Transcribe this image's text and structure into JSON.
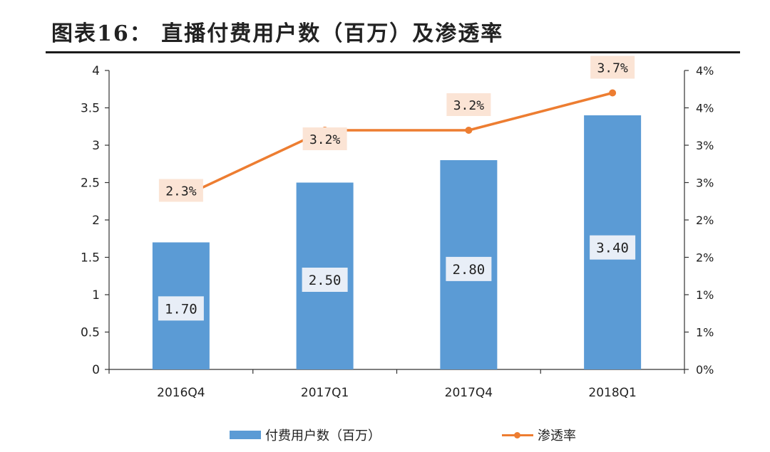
{
  "title": "图表16： 直播付费用户数（百万）及渗透率",
  "colors": {
    "bar": "#5b9bd5",
    "line": "#ed7d31",
    "label_bg_bar": "#e8eef7",
    "label_bg_line": "#fbe4d5"
  },
  "chart_data": {
    "type": "bar+line",
    "categories": [
      "2016Q4",
      "2017Q1",
      "2017Q4",
      "2018Q1"
    ],
    "series": [
      {
        "name": "付费用户数（百万）",
        "type": "bar",
        "axis": "left",
        "values": [
          1.7,
          2.5,
          2.8,
          3.4
        ],
        "data_labels": [
          "1.70",
          "2.50",
          "2.80",
          "3.40"
        ]
      },
      {
        "name": "渗透率",
        "type": "line",
        "axis": "right",
        "values": [
          2.3,
          3.2,
          3.2,
          3.7
        ],
        "data_labels": [
          "2.3%",
          "3.2%",
          "3.2%",
          "3.7%"
        ]
      }
    ],
    "y_left": {
      "ylim": [
        0,
        4
      ],
      "ticks": [
        0,
        0.5,
        1,
        1.5,
        2,
        2.5,
        3,
        3.5,
        4
      ],
      "tick_labels": [
        "0",
        "0.5",
        "1",
        "1.5",
        "2",
        "2.5",
        "3",
        "3.5",
        "4"
      ]
    },
    "y_right": {
      "ylim": [
        0,
        4
      ],
      "ticks": [
        0,
        0.5,
        1,
        1.5,
        2,
        2.5,
        3,
        3.5,
        4
      ],
      "tick_labels": [
        "0%",
        "1%",
        "1%",
        "2%",
        "2%",
        "3%",
        "3%",
        "4%",
        "4%"
      ]
    },
    "grid": false,
    "legend_position": "bottom"
  },
  "legend": [
    {
      "label": "付费用户数（百万）",
      "kind": "bar"
    },
    {
      "label": "渗透率",
      "kind": "line"
    }
  ]
}
